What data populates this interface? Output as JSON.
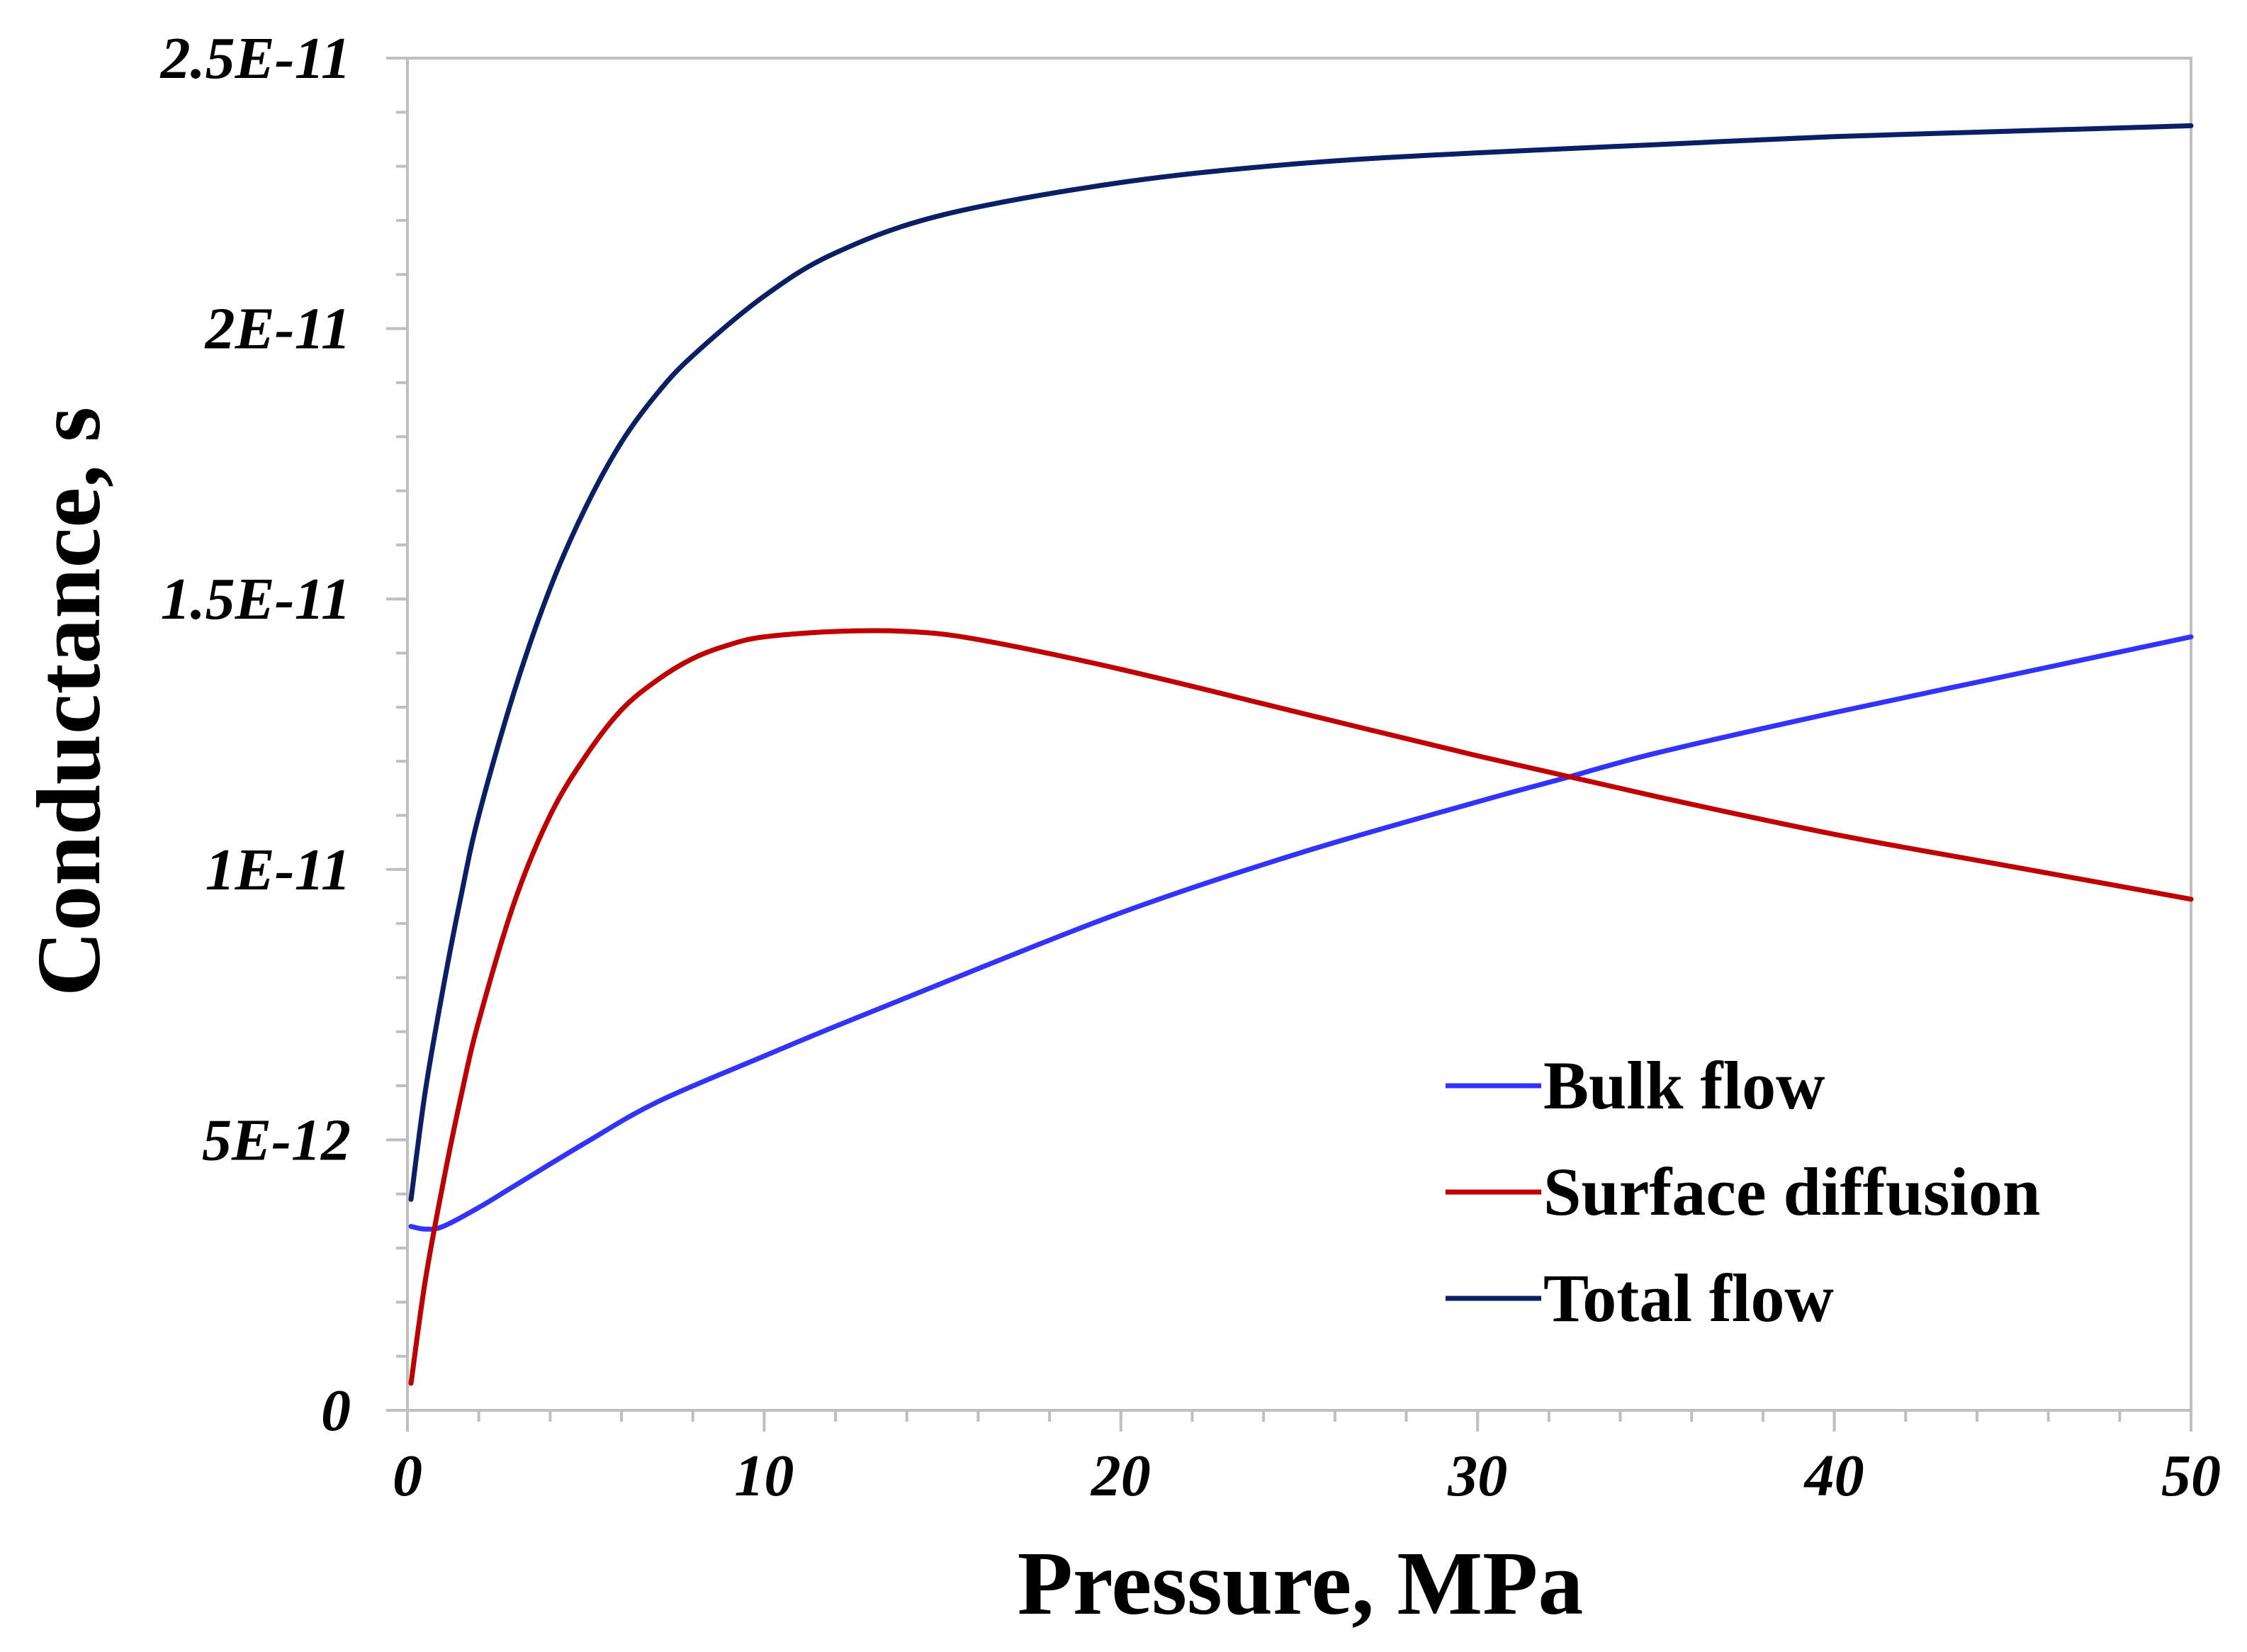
{
  "chart_data": {
    "type": "line",
    "title": "",
    "xlabel": "Pressure, MPa",
    "ylabel": "Conductance, s",
    "xlim": [
      0,
      50
    ],
    "ylim": [
      0,
      2.5e-11
    ],
    "x_ticks": [
      {
        "value": 0,
        "label": "0"
      },
      {
        "value": 10,
        "label": "10"
      },
      {
        "value": 20,
        "label": "20"
      },
      {
        "value": 30,
        "label": "30"
      },
      {
        "value": 40,
        "label": "40"
      },
      {
        "value": 50,
        "label": "50"
      }
    ],
    "y_ticks": [
      {
        "value": 0,
        "label": "0"
      },
      {
        "value": 5e-12,
        "label": "5E-12"
      },
      {
        "value": 1e-11,
        "label": "1E-11"
      },
      {
        "value": 1.5e-11,
        "label": "1.5E-11"
      },
      {
        "value": 2e-11,
        "label": "2E-11"
      },
      {
        "value": 2.5e-11,
        "label": "2.5E-11"
      }
    ],
    "x_minor_step": 2,
    "y_minor_step": 1e-12,
    "grid": false,
    "legend_position": "bottom-right",
    "series": [
      {
        "name": "Bulk flow",
        "color": "#3333ff",
        "x": [
          0.1,
          0.5,
          1,
          2,
          3,
          5,
          7,
          10,
          12,
          15,
          20,
          25,
          30,
          32.5,
          35,
          40,
          45,
          50
        ],
        "y": [
          3.4e-12,
          3.35e-12,
          3.4e-12,
          3.75e-12,
          4.15e-12,
          4.95e-12,
          5.7e-12,
          6.55e-12,
          7.1e-12,
          7.9e-12,
          9.2e-12,
          1.03e-11,
          1.125e-11,
          1.17e-11,
          1.215e-11,
          1.29e-11,
          1.36e-11,
          1.43e-11
        ]
      },
      {
        "name": "Surface diffusion",
        "color": "#c00000",
        "x": [
          0.1,
          0.5,
          1,
          1.5,
          2,
          3,
          4,
          5,
          6,
          7,
          8,
          9,
          10,
          12,
          14,
          16,
          20,
          25,
          30,
          35,
          40,
          45,
          50
        ],
        "y": [
          5e-13,
          2.4e-12,
          4.2e-12,
          5.8e-12,
          7.2e-12,
          9.4e-12,
          1.1e-11,
          1.21e-11,
          1.295e-11,
          1.35e-11,
          1.39e-11,
          1.415e-11,
          1.43e-11,
          1.44e-11,
          1.44e-11,
          1.425e-11,
          1.37e-11,
          1.29e-11,
          1.21e-11,
          1.135e-11,
          1.065e-11,
          1.005e-11,
          9.45e-12
        ]
      },
      {
        "name": "Total flow",
        "color": "#0b1f66",
        "x": [
          0.1,
          0.5,
          1,
          1.5,
          2,
          3,
          4,
          5,
          6,
          7,
          8,
          10,
          12,
          15,
          20,
          25,
          30,
          35,
          40,
          45,
          50
        ],
        "y": [
          3.9e-12,
          5.9e-12,
          7.8e-12,
          9.5e-12,
          1.1e-11,
          1.33e-11,
          1.52e-11,
          1.67e-11,
          1.79e-11,
          1.88e-11,
          1.95e-11,
          2.06e-11,
          2.14e-11,
          2.21e-11,
          2.27e-11,
          2.305e-11,
          2.325e-11,
          2.34e-11,
          2.355e-11,
          2.365e-11,
          2.375e-11
        ]
      }
    ]
  }
}
